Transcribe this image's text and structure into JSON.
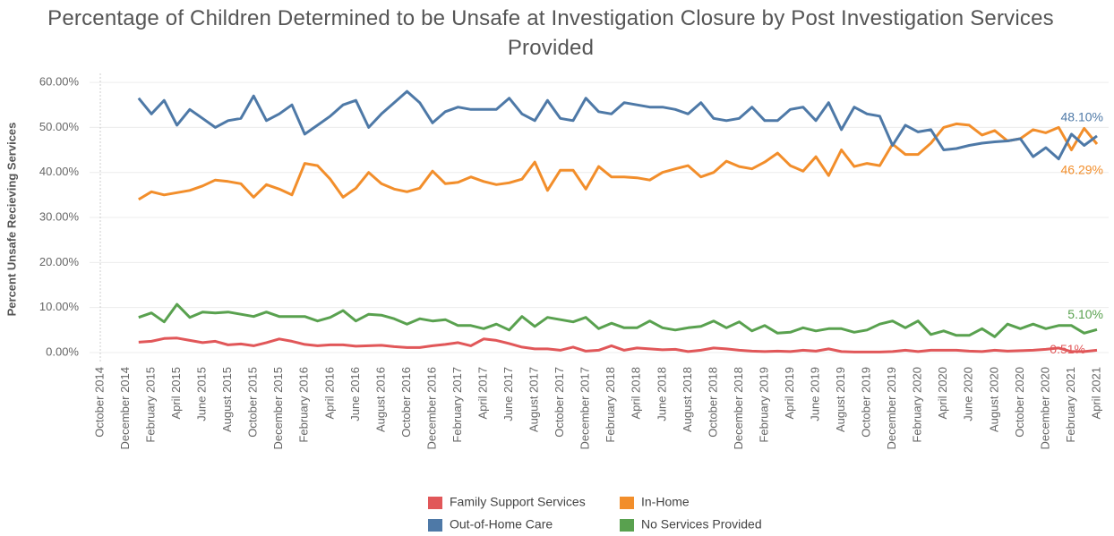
{
  "chart_data": {
    "type": "line",
    "title": "Percentage of Children Determined to be Unsafe at Investigation Closure by Post Investigation Services Provided",
    "y_label": "Percent Unsafe Recieving Services",
    "categories": [
      "October 2014",
      null,
      "December 2014",
      null,
      "February 2015",
      null,
      "April 2015",
      null,
      "June 2015",
      null,
      "August 2015",
      null,
      "October 2015",
      null,
      "December 2015",
      null,
      "February 2016",
      null,
      "April 2016",
      null,
      "June 2016",
      null,
      "August 2016",
      null,
      "October 2016",
      null,
      "December 2016",
      null,
      "February 2017",
      null,
      "April 2017",
      null,
      "June 2017",
      null,
      "August 2017",
      null,
      "October 2017",
      null,
      "December 2017",
      null,
      "February 2018",
      null,
      "April 2018",
      null,
      "June 2018",
      null,
      "August 2018",
      null,
      "October 2018",
      null,
      "December 2018",
      null,
      "February 2019",
      null,
      "April 2019",
      null,
      "June 2019",
      null,
      "August 2019",
      null,
      "October 2019",
      null,
      "December 2019",
      null,
      "February 2020",
      null,
      "April 2020",
      null,
      "June 2020",
      null,
      "August 2020",
      null,
      "October 2020",
      null,
      "December 2020",
      null,
      "February 2021",
      null,
      "April 2021"
    ],
    "series": [
      {
        "name": "Family Support Services",
        "color": "#e15759",
        "values": [
          null,
          null,
          null,
          2.3,
          2.5,
          3.1,
          3.2,
          2.7,
          2.2,
          2.5,
          1.7,
          1.9,
          1.5,
          2.2,
          3,
          2.5,
          1.8,
          1.5,
          1.7,
          1.7,
          1.4,
          1.5,
          1.6,
          1.3,
          1.1,
          1.1,
          1.5,
          1.8,
          2.2,
          1.5,
          3,
          2.7,
          2,
          1.2,
          0.8,
          0.8,
          0.5,
          1.2,
          0.3,
          0.5,
          1.5,
          0.5,
          1,
          0.8,
          0.6,
          0.7,
          0.2,
          0.5,
          1,
          0.8,
          0.5,
          0.3,
          0.2,
          0.3,
          0.2,
          0.5,
          0.3,
          0.8,
          0.2,
          0.1,
          0.1,
          0.1,
          0.2,
          0.5,
          0.2,
          0.5,
          0.5,
          0.5,
          0.3,
          0.2,
          0.5,
          0.3,
          0.4,
          0.5,
          0.7,
          1,
          0.2,
          0.2,
          0.51
        ],
        "value_labels": [
          null,
          null,
          null,
          null,
          null,
          null,
          null,
          null,
          null,
          null,
          null,
          null,
          null,
          null,
          null,
          null,
          null,
          null,
          null,
          null,
          null,
          null,
          null,
          null,
          null,
          null,
          null,
          null,
          null,
          null,
          null,
          null,
          null,
          null,
          null,
          null,
          null,
          null,
          null,
          null,
          null,
          null,
          null,
          null,
          null,
          null,
          null,
          null,
          null,
          null,
          null,
          null,
          null,
          null,
          null,
          null,
          null,
          null,
          null,
          null,
          null,
          null,
          null,
          null,
          null,
          null,
          null,
          null,
          null,
          null,
          null,
          null,
          null,
          null,
          null,
          null,
          null,
          null,
          "0.51%"
        ]
      },
      {
        "name": "In-Home",
        "color": "#f28e2b",
        "values": [
          null,
          null,
          null,
          34,
          35.7,
          35,
          35.5,
          36,
          37,
          38.3,
          38,
          37.5,
          34.5,
          37.3,
          36.3,
          35,
          42,
          41.5,
          38.5,
          34.5,
          36.5,
          40,
          37.5,
          36.3,
          35.7,
          36.5,
          40.3,
          37.5,
          37.8,
          39,
          38,
          37.3,
          37.7,
          38.5,
          42.3,
          36,
          40.5,
          40.5,
          36.3,
          41.3,
          39,
          39,
          38.8,
          38.3,
          40,
          40.8,
          41.5,
          39,
          40,
          42.5,
          41.3,
          40.8,
          42.3,
          44.3,
          41.5,
          40.3,
          43.5,
          39.3,
          45,
          41.3,
          42,
          41.5,
          46.3,
          44,
          44,
          46.5,
          50,
          50.8,
          50.5,
          48.3,
          49.3,
          47,
          47.5,
          49.5,
          48.8,
          50,
          45,
          49.8,
          46.29
        ],
        "value_labels": [
          null,
          null,
          null,
          null,
          null,
          null,
          null,
          null,
          null,
          null,
          null,
          null,
          null,
          null,
          null,
          null,
          null,
          null,
          null,
          null,
          null,
          null,
          null,
          null,
          null,
          null,
          null,
          null,
          null,
          null,
          null,
          null,
          null,
          null,
          null,
          null,
          null,
          null,
          null,
          null,
          null,
          null,
          null,
          null,
          null,
          null,
          null,
          null,
          null,
          null,
          null,
          null,
          null,
          null,
          null,
          null,
          null,
          null,
          null,
          null,
          null,
          null,
          null,
          null,
          null,
          null,
          null,
          null,
          null,
          null,
          null,
          null,
          null,
          null,
          null,
          null,
          null,
          null,
          "46.29%"
        ]
      },
      {
        "name": "Out-of-Home Care",
        "color": "#4e79a7",
        "values": [
          null,
          null,
          null,
          56.5,
          53,
          56,
          50.5,
          54,
          52,
          50,
          51.5,
          52,
          57,
          51.5,
          53,
          55,
          48.5,
          50.5,
          52.5,
          55,
          56,
          50,
          53,
          55.5,
          58,
          55.5,
          51,
          53.5,
          54.5,
          54,
          54,
          54,
          56.5,
          53,
          51.5,
          56,
          52,
          51.5,
          56.5,
          53.5,
          53,
          55.5,
          55,
          54.5,
          54.5,
          54,
          53,
          55.5,
          52,
          51.5,
          52,
          54.5,
          51.5,
          51.5,
          54,
          54.5,
          51.5,
          55.5,
          49.5,
          54.5,
          53,
          52.5,
          46,
          50.5,
          49,
          49.5,
          45,
          45.3,
          46,
          46.5,
          46.8,
          47,
          47.5,
          43.5,
          45.5,
          43,
          48.5,
          46,
          48.1
        ],
        "value_labels": [
          null,
          null,
          null,
          null,
          null,
          null,
          null,
          null,
          null,
          null,
          null,
          null,
          null,
          null,
          null,
          null,
          null,
          null,
          null,
          null,
          null,
          null,
          null,
          null,
          null,
          null,
          null,
          null,
          null,
          null,
          null,
          null,
          null,
          null,
          null,
          null,
          null,
          null,
          null,
          null,
          null,
          null,
          null,
          null,
          null,
          null,
          null,
          null,
          null,
          null,
          null,
          null,
          null,
          null,
          null,
          null,
          null,
          null,
          null,
          null,
          null,
          null,
          null,
          null,
          null,
          null,
          null,
          null,
          null,
          null,
          null,
          null,
          null,
          null,
          null,
          null,
          null,
          null,
          "48.10%"
        ]
      },
      {
        "name": "No Services Provided",
        "color": "#59a14f",
        "values": [
          null,
          null,
          null,
          7.8,
          8.8,
          6.8,
          10.7,
          7.8,
          9,
          8.8,
          9,
          8.5,
          8,
          9,
          8,
          8,
          8,
          7,
          7.8,
          9.3,
          7,
          8.5,
          8.3,
          7.5,
          6.3,
          7.5,
          7,
          7.3,
          6,
          6,
          5.3,
          6.3,
          5,
          8,
          5.8,
          7.8,
          7.3,
          6.8,
          7.8,
          5.3,
          6.5,
          5.5,
          5.5,
          7,
          5.5,
          5,
          5.5,
          5.8,
          7,
          5.5,
          6.8,
          4.8,
          6,
          4.3,
          4.5,
          5.5,
          4.8,
          5.3,
          5.3,
          4.5,
          5,
          6.3,
          7,
          5.5,
          7,
          4,
          4.8,
          3.8,
          3.8,
          5.3,
          3.5,
          6.3,
          5.3,
          6.3,
          5.3,
          6,
          6,
          4.3,
          5.1
        ],
        "value_labels": [
          null,
          null,
          null,
          null,
          null,
          null,
          null,
          null,
          null,
          null,
          null,
          null,
          null,
          null,
          null,
          null,
          null,
          null,
          null,
          null,
          null,
          null,
          null,
          null,
          null,
          null,
          null,
          null,
          null,
          null,
          null,
          null,
          null,
          null,
          null,
          null,
          null,
          null,
          null,
          null,
          null,
          null,
          null,
          null,
          null,
          null,
          null,
          null,
          null,
          null,
          null,
          null,
          null,
          null,
          null,
          null,
          null,
          null,
          null,
          null,
          null,
          null,
          null,
          null,
          null,
          null,
          null,
          null,
          null,
          null,
          null,
          null,
          null,
          null,
          null,
          null,
          null,
          null,
          "5.10%"
        ]
      }
    ],
    "ylim": [
      -2,
      62
    ],
    "yticks": [
      {
        "value": 0,
        "label": "0.00%"
      },
      {
        "value": 10,
        "label": "10.00%"
      },
      {
        "value": 20,
        "label": "20.00%"
      },
      {
        "value": 30,
        "label": "30.00%"
      },
      {
        "value": 40,
        "label": "40.00%"
      },
      {
        "value": 50,
        "label": "50.00%"
      },
      {
        "value": 60,
        "label": "60.00%"
      }
    ],
    "grid": true,
    "legend": "bottom"
  }
}
